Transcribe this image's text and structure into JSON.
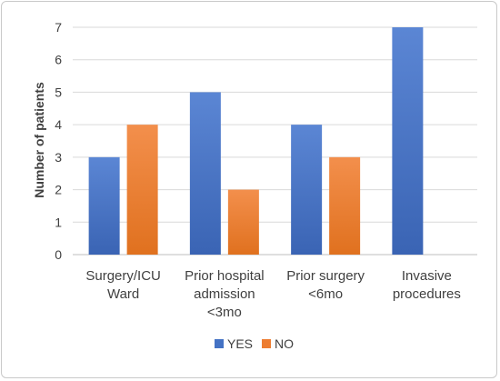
{
  "chart_data": {
    "type": "bar",
    "title": "",
    "xlabel": "",
    "ylabel": "Number of patients",
    "ylim": [
      0,
      7
    ],
    "yticks": [
      0,
      1,
      2,
      3,
      4,
      5,
      6,
      7
    ],
    "grid": true,
    "legend_position": "bottom",
    "categories": [
      [
        "Surgery/ICU",
        "Ward"
      ],
      [
        "Prior hospital",
        "admission",
        "<3mo"
      ],
      [
        "Prior surgery",
        "<6mo"
      ],
      [
        "Invasive",
        "procedures"
      ]
    ],
    "series": [
      {
        "name": "YES",
        "color": "#4472C4",
        "values": [
          3,
          5,
          4,
          7
        ]
      },
      {
        "name": "NO",
        "color": "#ED7D31",
        "values": [
          4,
          2,
          3,
          0
        ]
      }
    ]
  }
}
